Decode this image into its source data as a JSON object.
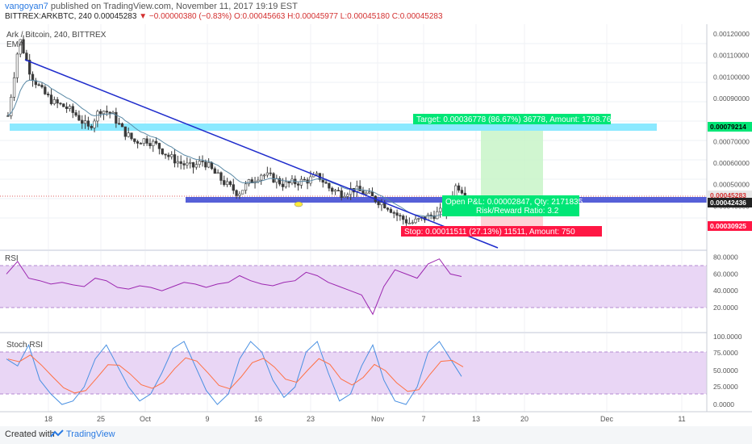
{
  "header": {
    "user": "vangoyan7",
    "published": "published on TradingView.com, November 11, 2017 19:19 EST",
    "symbol": "BITTREX:ARKBTC, 240",
    "last": "0.00045283",
    "change": "▼ −0.00000380 (−0.83%)",
    "ohlc": "O:0.00045663 H:0.00045977 L:0.00045180 C:0.00045283"
  },
  "main_pane": {
    "title": "Ark / Bitcoin, 240, BITTREX",
    "indicator": "EMA",
    "y_ticks": [
      "0.00120000",
      "0.00110000",
      "0.00100000",
      "0.00090000",
      "0.00070000",
      "0.00060000",
      "0.00050000",
      "0.00040000"
    ],
    "price_labels": [
      {
        "text": "0.00079214",
        "bg": "#00e676",
        "fg": "#000000"
      },
      {
        "text": "0.00045283",
        "bg": "#e8e8e8",
        "fg": "#d32f2f"
      },
      {
        "text": "0.00042436",
        "bg": "#222222",
        "fg": "#ffffff"
      },
      {
        "text": "0.00030925",
        "bg": "#ff1744",
        "fg": "#ffffff"
      }
    ]
  },
  "position": {
    "target": "Target: 0.00036778 (86.67%) 36778, Amount: 1798.76",
    "open": "Open P&L: 0.00002847, Qty: 2171835",
    "risk": "Risk/Reward Ratio: 3.2",
    "stop": "Stop: 0.00011511 (27.13%) 11511, Amount: 750"
  },
  "rsi_pane": {
    "label": "RSI",
    "y_ticks": [
      "80.0000",
      "60.0000",
      "40.0000",
      "20.0000"
    ]
  },
  "stoch_pane": {
    "label": "Stoch RSI",
    "y_ticks": [
      "100.0000",
      "75.0000",
      "50.0000",
      "25.0000",
      "0.0000"
    ]
  },
  "x_ticks": [
    "18",
    "25",
    "Oct",
    "9",
    "16",
    "23",
    "Nov",
    "7",
    "13",
    "20",
    "Dec",
    "11"
  ],
  "footer": {
    "created": "Created with",
    "brand": "TradingView"
  },
  "colors": {
    "candle": "#3a3a3a",
    "ema": "#5b8aa6",
    "trendline": "#1f2ccc",
    "support": "#5660d8",
    "target_zone": "#8be9ff",
    "rsi": "#9c27b0",
    "stoch_k": "#4a90e2",
    "stoch_d": "#ff7043",
    "band": "#e9d6f5"
  },
  "chart_data": [
    {
      "type": "candlestick",
      "title": "Ark / Bitcoin, 240, BITTREX",
      "ylim": [
        0.00019,
        0.0013
      ],
      "x_ticks": [
        "18",
        "25",
        "Oct",
        "9",
        "16",
        "23",
        "Nov",
        "7",
        "13",
        "20",
        "Dec",
        "11"
      ],
      "close_approx": [
        0.00082,
        0.00118,
        0.00101,
        0.00093,
        0.00088,
        0.00086,
        0.00082,
        0.00076,
        0.00085,
        0.00083,
        0.00075,
        0.0007,
        0.00071,
        0.00068,
        0.00063,
        0.0006,
        0.00058,
        0.00061,
        0.00055,
        0.0005,
        0.00046,
        0.00051,
        0.00055,
        0.00053,
        0.0005,
        0.00051,
        0.00052,
        0.00054,
        0.00048,
        0.00046,
        0.00048,
        0.00046,
        0.00043,
        0.0004,
        0.00035,
        0.00032,
        0.00034,
        0.00036,
        0.00038,
        0.0005,
        0.00045
      ],
      "levels": {
        "target": 0.00079214,
        "support": 0.00042436,
        "last": 0.00045283,
        "stop": 0.00030925
      }
    },
    {
      "type": "line",
      "name": "RSI",
      "ylim": [
        10,
        85
      ],
      "y_ticks": [
        80,
        60,
        40,
        20
      ],
      "values": [
        60,
        75,
        55,
        52,
        48,
        50,
        47,
        45,
        55,
        52,
        44,
        42,
        46,
        44,
        40,
        45,
        50,
        48,
        44,
        48,
        50,
        58,
        52,
        48,
        46,
        50,
        52,
        62,
        58,
        50,
        45,
        40,
        35,
        12,
        45,
        65,
        60,
        55,
        72,
        78,
        60,
        57
      ]
    },
    {
      "type": "line",
      "name": "Stoch RSI",
      "ylim": [
        -5,
        105
      ],
      "y_ticks": [
        100,
        75,
        50,
        25,
        0
      ],
      "values": [
        70,
        60,
        90,
        40,
        20,
        5,
        10,
        30,
        70,
        90,
        60,
        30,
        10,
        20,
        50,
        85,
        95,
        60,
        25,
        5,
        20,
        70,
        95,
        80,
        40,
        15,
        30,
        80,
        95,
        50,
        10,
        20,
        60,
        90,
        40,
        10,
        5,
        30,
        80,
        95,
        70,
        45
      ]
    }
  ]
}
